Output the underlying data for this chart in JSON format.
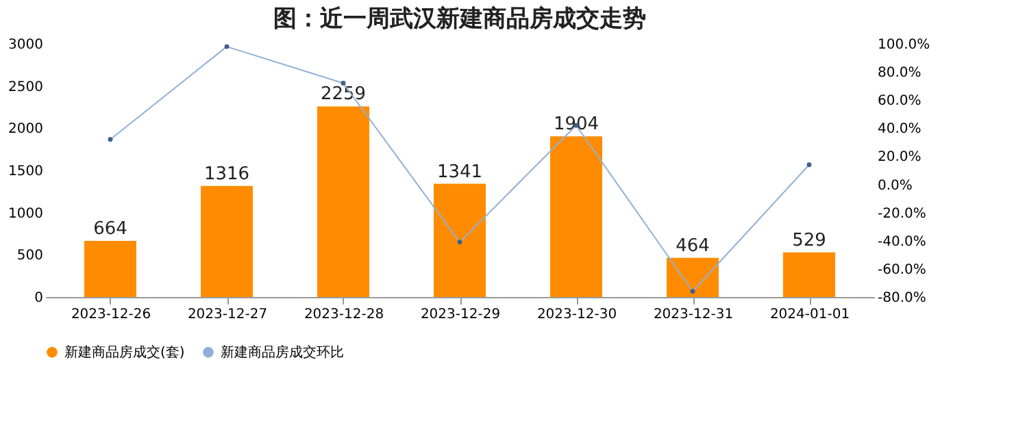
{
  "chart_data": {
    "type": "bar",
    "title": "图：近一周武汉新建商品房成交走势",
    "categories": [
      "2023-12-26",
      "2023-12-27",
      "2023-12-28",
      "2023-12-29",
      "2023-12-30",
      "2023-12-31",
      "2024-01-01"
    ],
    "series": [
      {
        "name": "新建商品房成交(套)",
        "color": "#ff8c00",
        "values": [
          664,
          1316,
          2259,
          1341,
          1904,
          464,
          529
        ],
        "value_labels": [
          "664",
          "1316",
          "2259",
          "1341",
          "1904",
          "464",
          "529"
        ]
      },
      {
        "name": "新建商品房成交环比",
        "type": "line",
        "axis": "y2",
        "color": "#8fb0d8",
        "marker": "circle",
        "values": [
          32,
          98,
          72,
          -41,
          42,
          -76,
          14
        ]
      }
    ],
    "ylim": [
      0,
      3000
    ],
    "yticks": [
      0,
      500,
      1000,
      1500,
      2000,
      2500,
      3000
    ],
    "y2lim": [
      -80,
      100
    ],
    "y2ticks": [
      {
        "value": -80,
        "label": "-80.0%"
      },
      {
        "value": -60,
        "label": "-60.0%"
      },
      {
        "value": -40,
        "label": "-40.0%"
      },
      {
        "value": -20,
        "label": "-20.0%"
      },
      {
        "value": 0,
        "label": "0.0%"
      },
      {
        "value": 20,
        "label": "20.0%"
      },
      {
        "value": 40,
        "label": "40.0%"
      },
      {
        "value": 60,
        "label": "60.0%"
      },
      {
        "value": 80,
        "label": "80.0%"
      },
      {
        "value": 100,
        "label": "100.0%"
      }
    ],
    "grid": false,
    "legend": "bottom"
  }
}
